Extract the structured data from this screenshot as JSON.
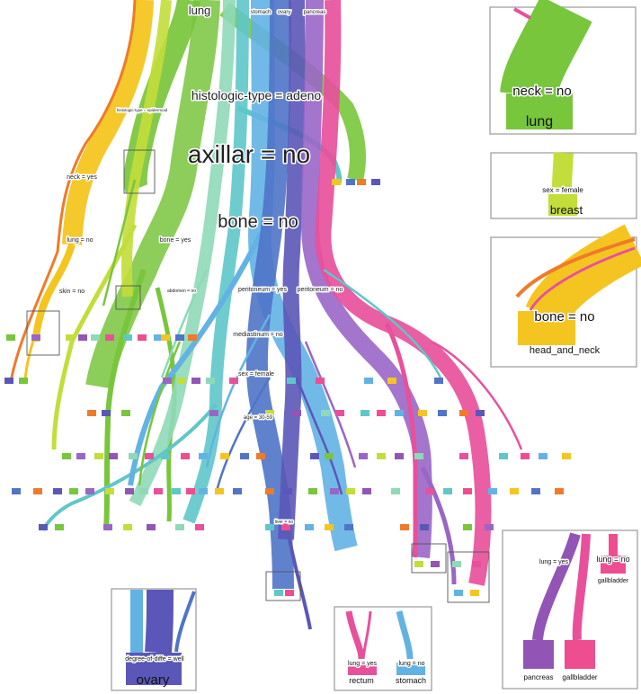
{
  "colors": {
    "head_and_neck": "#f4c520",
    "head_and_neck_edge": "#ef7a2a",
    "lung": "#78c63c",
    "breast": "#c3dd3a",
    "mint": "#8fd9b8",
    "teal": "#5fc7c9",
    "stomach": "#62b3e4",
    "blue": "#4f74c8",
    "ovary": "#5b57b8",
    "purple": "#9a66c6",
    "pancreas": "#9355b5",
    "rectum": "#e8509b",
    "gallbladder": "#ee4d8f"
  },
  "top_labels": {
    "lung": "lung",
    "stomach": "stomach",
    "ovary": "ovary",
    "pancreas": "pancreas"
  },
  "splits": {
    "histologic_type": "histologic-type = adeno",
    "axillar": "axillar = no",
    "bone": "bone = no",
    "neck_yes": "neck = yes",
    "lung_no": "lung = no",
    "skin_no": "skin = no",
    "bone_yes": "bone = yes",
    "abdominal": "abdomen = no",
    "peritoneum_yes": "peritoneum = yes",
    "peritoneum_no": "peritoneum = no",
    "mediastinum": "mediastinum = no",
    "sex_female": "sex = female",
    "age": "age = 30-59",
    "liver_no": "liver = no",
    "sup": "histologic-type = epidermoid"
  },
  "insets": {
    "lung": {
      "split": "neck = no",
      "leaf": "lung"
    },
    "breast": {
      "split": "sex = female",
      "leaf": "breast"
    },
    "head_and_neck": {
      "split": "bone = no",
      "leaf": "head_and_neck"
    },
    "ovary": {
      "split": "degree-of-diffe = well",
      "leaf": "ovary"
    },
    "rectum_stomach": {
      "left_split": "lung = yes",
      "left_leaf": "rectum",
      "right_split": "lung = no",
      "right_leaf": "stomach"
    },
    "pancreas_gallbladder": {
      "top_split": "lung = yes",
      "right_split": "lung = no",
      "right_leaf": "gallbladder",
      "left_leaf": "pancreas",
      "bottom_leaf": "gallbladder"
    }
  }
}
